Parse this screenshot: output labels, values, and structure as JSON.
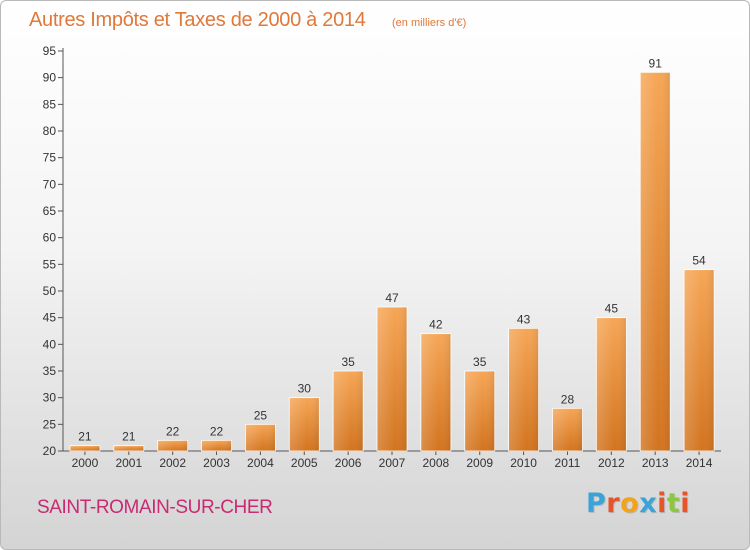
{
  "header": {
    "title": "Autres Impôts et Taxes de 2000 à 2014",
    "subtitle": "(en milliers d'€)"
  },
  "footer": {
    "commune": "SAINT-ROMAIN-SUR-CHER",
    "logo_text": "Proxiti"
  },
  "colors": {
    "bar_light": "#f6a656",
    "bar_dark": "#d2741f",
    "title": "#e0783a",
    "commune": "#c92a73",
    "logo": [
      "#3aa3d8",
      "#e6542a",
      "#f2a31c",
      "#3aa3d8",
      "#e6542a",
      "#8dc63f",
      "#e6542a"
    ]
  },
  "chart_data": {
    "type": "bar",
    "title": "Autres Impôts et Taxes de 2000 à 2014",
    "subtitle": "(en milliers d'€)",
    "categories": [
      "2000",
      "2001",
      "2002",
      "2003",
      "2004",
      "2005",
      "2006",
      "2007",
      "2008",
      "2009",
      "2010",
      "2011",
      "2012",
      "2013",
      "2014"
    ],
    "values": [
      21,
      21,
      22,
      22,
      25,
      30,
      35,
      47,
      42,
      35,
      43,
      28,
      45,
      91,
      54
    ],
    "ylim": [
      20,
      95
    ],
    "yticks": [
      20,
      25,
      30,
      35,
      40,
      45,
      50,
      55,
      60,
      65,
      70,
      75,
      80,
      85,
      90,
      95
    ],
    "grid": false,
    "data_labels": true
  }
}
